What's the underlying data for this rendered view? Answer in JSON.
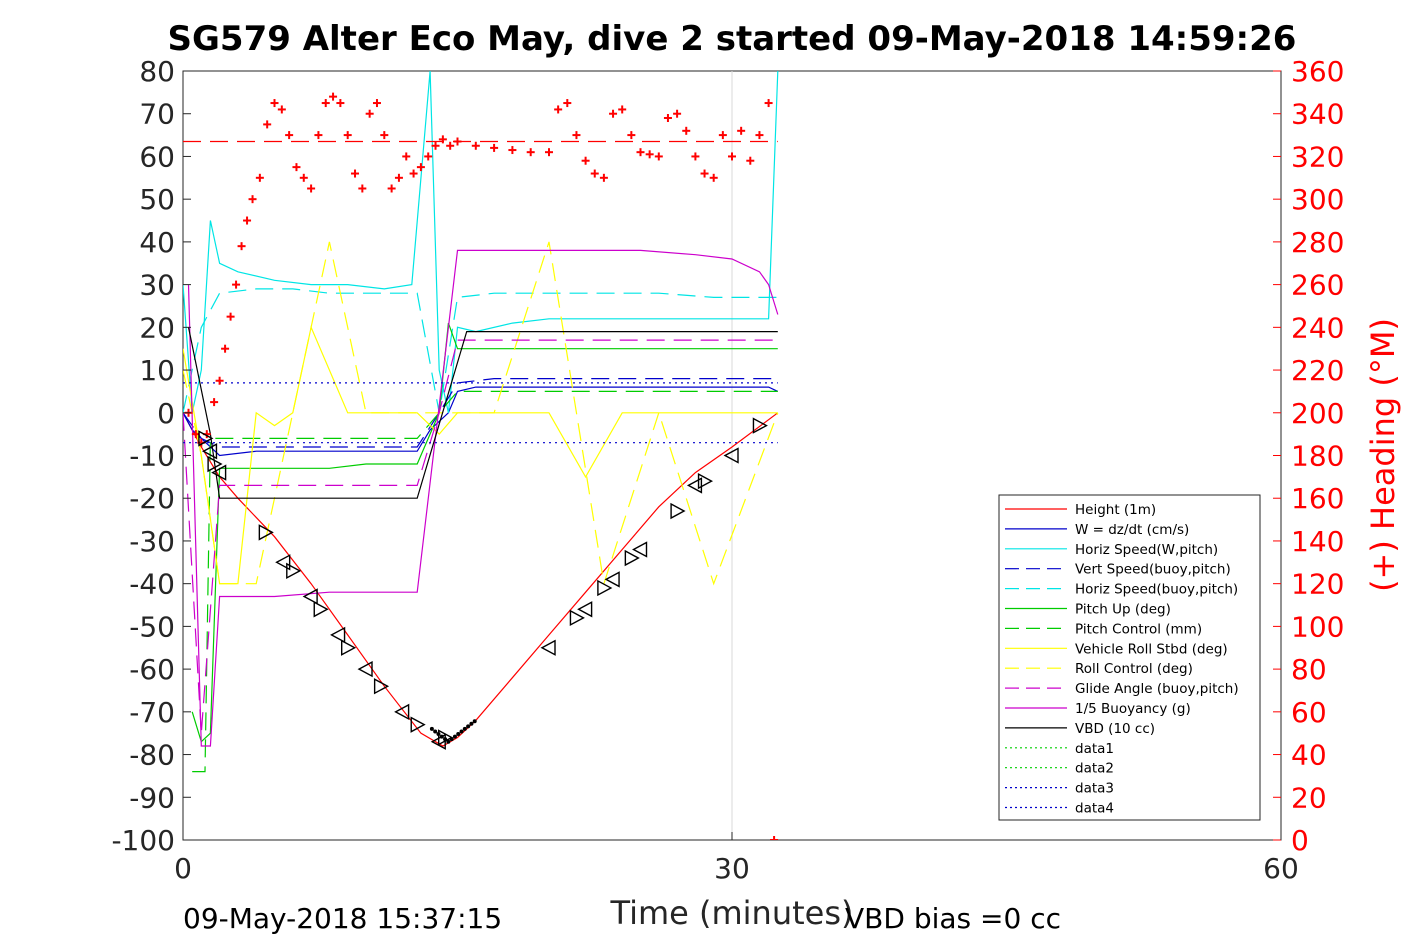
{
  "chart_data": {
    "type": "line",
    "title": "SG579 Alter Eco May, dive 2 started 09-May-2018 14:59:26",
    "xlabel": "Time (minutes)",
    "ylabel": "",
    "y2label": "(+) Heading (°M)",
    "xlim": [
      0,
      60
    ],
    "ylim": [
      -100,
      80
    ],
    "y2lim": [
      0,
      360
    ],
    "xticks": [
      0,
      30,
      60
    ],
    "yticks": [
      -100,
      -90,
      -80,
      -70,
      -60,
      -50,
      -40,
      -30,
      -20,
      -10,
      0,
      10,
      20,
      30,
      40,
      50,
      60,
      70,
      80
    ],
    "y2ticks": [
      0,
      20,
      40,
      60,
      80,
      100,
      120,
      140,
      160,
      180,
      200,
      220,
      240,
      260,
      280,
      300,
      320,
      340,
      360
    ],
    "grid": "x-only at 30",
    "legend_placement": "lower-right",
    "footer_left": "09-May-2018 15:37:15",
    "footer_right": "VBD bias =0 cc",
    "series": [
      {
        "name": "Height (1m)",
        "color": "#ff0000",
        "style": "solid",
        "x": [
          0,
          1,
          2,
          3,
          5,
          7,
          9,
          11,
          13,
          14.2,
          15,
          16,
          18,
          20,
          22,
          24,
          26,
          28,
          30,
          32.5
        ],
        "y": [
          0,
          -8,
          -15,
          -20,
          -29,
          -40,
          -52,
          -64,
          -75,
          -78,
          -76,
          -72,
          -62,
          -52,
          -42,
          -32,
          -22,
          -14,
          -8,
          0
        ]
      },
      {
        "name": "W = dz/dt (cm/s)",
        "color": "#0000cc",
        "style": "solid",
        "x": [
          0,
          0.5,
          1,
          2,
          4,
          6,
          8,
          10,
          12,
          12.8,
          13.5,
          14.5,
          15,
          16,
          18,
          20,
          22,
          24,
          26,
          28,
          30,
          32,
          32.5
        ],
        "y": [
          0,
          -4,
          -6,
          -10,
          -9,
          -9,
          -9,
          -9,
          -9,
          -9,
          -4,
          0,
          5,
          6,
          6,
          6,
          6,
          6,
          6,
          6,
          6,
          6,
          5
        ]
      },
      {
        "name": "Horiz Speed(W,pitch)",
        "color": "#00e5e5",
        "style": "solid",
        "x": [
          0,
          0.5,
          1,
          1.5,
          2,
          3,
          5,
          7,
          9,
          11,
          12.5,
          13.5,
          14,
          14.5,
          15,
          16,
          18,
          20,
          22,
          24,
          26,
          28,
          30,
          32,
          32.5
        ],
        "y": [
          30,
          0,
          10,
          45,
          35,
          33,
          31,
          30,
          30,
          29,
          30,
          80,
          10,
          0,
          20,
          19,
          21,
          22,
          22,
          22,
          22,
          22,
          22,
          22,
          80
        ]
      },
      {
        "name": "Vert Speed(buoy,pitch)",
        "color": "#0000cc",
        "style": "dashed",
        "x": [
          0,
          1,
          2,
          4,
          6,
          8,
          10,
          12.8,
          14,
          15,
          17,
          20,
          23,
          26,
          29,
          32.5
        ],
        "y": [
          0,
          -6,
          -8,
          -8,
          -8,
          -8,
          -8,
          -8,
          0,
          7,
          8,
          8,
          8,
          8,
          8,
          8
        ]
      },
      {
        "name": "Horiz Speed(buoy,pitch)",
        "color": "#00e5e5",
        "style": "dashed",
        "x": [
          0,
          1,
          2,
          4,
          6,
          8,
          10,
          12.8,
          14,
          15,
          17,
          20,
          23,
          26,
          29,
          32.5
        ],
        "y": [
          0,
          20,
          28,
          29,
          29,
          28,
          28,
          28,
          0,
          27,
          28,
          28,
          28,
          28,
          27,
          27
        ]
      },
      {
        "name": "Pitch Up (deg)",
        "color": "#00cc00",
        "style": "solid",
        "x": [
          0.5,
          1,
          1.5,
          2,
          4,
          6,
          8,
          10,
          12.8,
          14,
          14.5,
          15,
          17,
          20,
          23,
          26,
          29,
          32.5
        ],
        "y": [
          -70,
          -77,
          -75,
          -13,
          -13,
          -13,
          -13,
          -12,
          -12,
          0,
          21,
          15,
          15,
          15,
          15,
          15,
          15,
          15
        ]
      },
      {
        "name": "Pitch Control (mm)",
        "color": "#00cc00",
        "style": "dashed",
        "x": [
          0.5,
          1.2,
          1.5,
          2,
          12.8,
          14,
          15,
          32.5
        ],
        "y": [
          -84,
          -84,
          -6,
          -6,
          -6,
          0,
          5,
          5
        ]
      },
      {
        "name": "Vehicle Roll Stbd (deg)",
        "color": "#ffff00",
        "style": "solid",
        "x": [
          0,
          1,
          2,
          3,
          4,
          5,
          6,
          7,
          9,
          11,
          12.8,
          14,
          15,
          17,
          20,
          22,
          24,
          26,
          28,
          30,
          32.5
        ],
        "y": [
          15,
          -10,
          -40,
          -40,
          0,
          -3,
          0,
          20,
          0,
          0,
          0,
          -5,
          0,
          0,
          0,
          -15,
          0,
          0,
          0,
          0,
          0
        ]
      },
      {
        "name": "Roll Control (deg)",
        "color": "#ffff00",
        "style": "dashed",
        "x": [
          0,
          1,
          2,
          4,
          6,
          8,
          10,
          12.8,
          14,
          15,
          17,
          20,
          23,
          26,
          29,
          32.5
        ],
        "y": [
          10,
          -10,
          -40,
          -40,
          0,
          40,
          0,
          0,
          0,
          0,
          0,
          40,
          -40,
          0,
          -40,
          0
        ]
      },
      {
        "name": "Glide Angle (buoy,pitch)",
        "color": "#cc00cc",
        "style": "dashed",
        "x": [
          0,
          1,
          2,
          4,
          6,
          8,
          10,
          12.8,
          14,
          15,
          17,
          20,
          23,
          26,
          29,
          32.5
        ],
        "y": [
          0,
          -75,
          -17,
          -17,
          -17,
          -17,
          -17,
          -17,
          0,
          17,
          17,
          17,
          17,
          17,
          17,
          17
        ]
      },
      {
        "name": "1/5 Buoyancy (g)",
        "color": "#cc00cc",
        "style": "solid",
        "x": [
          0.3,
          1,
          1.5,
          2,
          5,
          8,
          10,
          12.8,
          15,
          15.5,
          20,
          25,
          28,
          30,
          31.5,
          32,
          32.5
        ],
        "y": [
          30,
          -78,
          -78,
          -43,
          -43,
          -42,
          -42,
          -42,
          38,
          38,
          38,
          38,
          37,
          36,
          33,
          30,
          23
        ]
      },
      {
        "name": "VBD (10 cc)",
        "color": "#000000",
        "style": "solid",
        "x": [
          0.3,
          1.5,
          2,
          12.8,
          15.5,
          32.5
        ],
        "y": [
          20,
          -5,
          -20,
          -20,
          19,
          19
        ]
      },
      {
        "name": "data1",
        "color": "#00cc00",
        "style": "dotted",
        "x": [],
        "y": []
      },
      {
        "name": "data2",
        "color": "#00cc00",
        "style": "dotted",
        "x": [],
        "y": []
      },
      {
        "name": "data3",
        "color": "#0000cc",
        "style": "dotted",
        "x": [
          0,
          32.5
        ],
        "y": [
          7,
          7
        ]
      },
      {
        "name": "data4",
        "color": "#0000cc",
        "style": "dotted",
        "x": [
          0,
          32.5
        ],
        "y": [
          -7,
          -7
        ]
      }
    ],
    "heading_reference": {
      "color": "#ff0000",
      "style": "dashed",
      "y2": 327,
      "x": [
        0,
        32.5
      ]
    },
    "heading_points": {
      "color": "#ff0000",
      "x": [
        0.3,
        0.7,
        1.0,
        1.3,
        1.7,
        2.0,
        2.3,
        2.6,
        2.9,
        3.2,
        3.5,
        3.8,
        4.2,
        4.6,
        5.0,
        5.4,
        5.8,
        6.2,
        6.6,
        7.0,
        7.4,
        7.8,
        8.2,
        8.6,
        9.0,
        9.4,
        9.8,
        10.2,
        10.6,
        11.0,
        11.4,
        11.8,
        12.2,
        12.6,
        13.0,
        13.4,
        13.8,
        14.2,
        14.6,
        15.0,
        16,
        17,
        18,
        19,
        20,
        20.5,
        21,
        21.5,
        22,
        22.5,
        23,
        23.5,
        24,
        24.5,
        25,
        25.5,
        26,
        26.5,
        27,
        27.5,
        28,
        28.5,
        29,
        29.5,
        30,
        30.5,
        31,
        31.5,
        32,
        32.3
      ],
      "y2": [
        200,
        190,
        186,
        190,
        205,
        215,
        230,
        245,
        260,
        278,
        290,
        300,
        310,
        335,
        345,
        342,
        330,
        315,
        310,
        305,
        330,
        345,
        348,
        345,
        330,
        312,
        305,
        340,
        345,
        330,
        305,
        310,
        320,
        312,
        315,
        320,
        325,
        328,
        325,
        327,
        325,
        324,
        323,
        322,
        322,
        342,
        345,
        330,
        318,
        312,
        310,
        340,
        342,
        330,
        322,
        321,
        320,
        338,
        340,
        332,
        320,
        312,
        310,
        330,
        320,
        332,
        318,
        330,
        345,
        0
      ]
    },
    "markers": {
      "color": "#000000",
      "shape": "triangle",
      "x": [
        1.2,
        1.5,
        1.7,
        2.0,
        4.5,
        5.5,
        6.0,
        7.0,
        7.5,
        8.5,
        9.0,
        10.0,
        10.8,
        12.0,
        12.8,
        14.0,
        14.3,
        20.0,
        21.5,
        22.0,
        23.0,
        23.5,
        24.5,
        25.0,
        27.0,
        28.0,
        28.5,
        30.0,
        31.5
      ],
      "y": [
        -6,
        -9,
        -12,
        -14,
        -28,
        -35,
        -37,
        -43,
        -46,
        -52,
        -55,
        -60,
        -64,
        -70,
        -73,
        -77,
        -76,
        -55,
        -48,
        -46,
        -41,
        -39,
        -34,
        -32,
        -23,
        -17,
        -16,
        -10,
        -3
      ]
    }
  }
}
